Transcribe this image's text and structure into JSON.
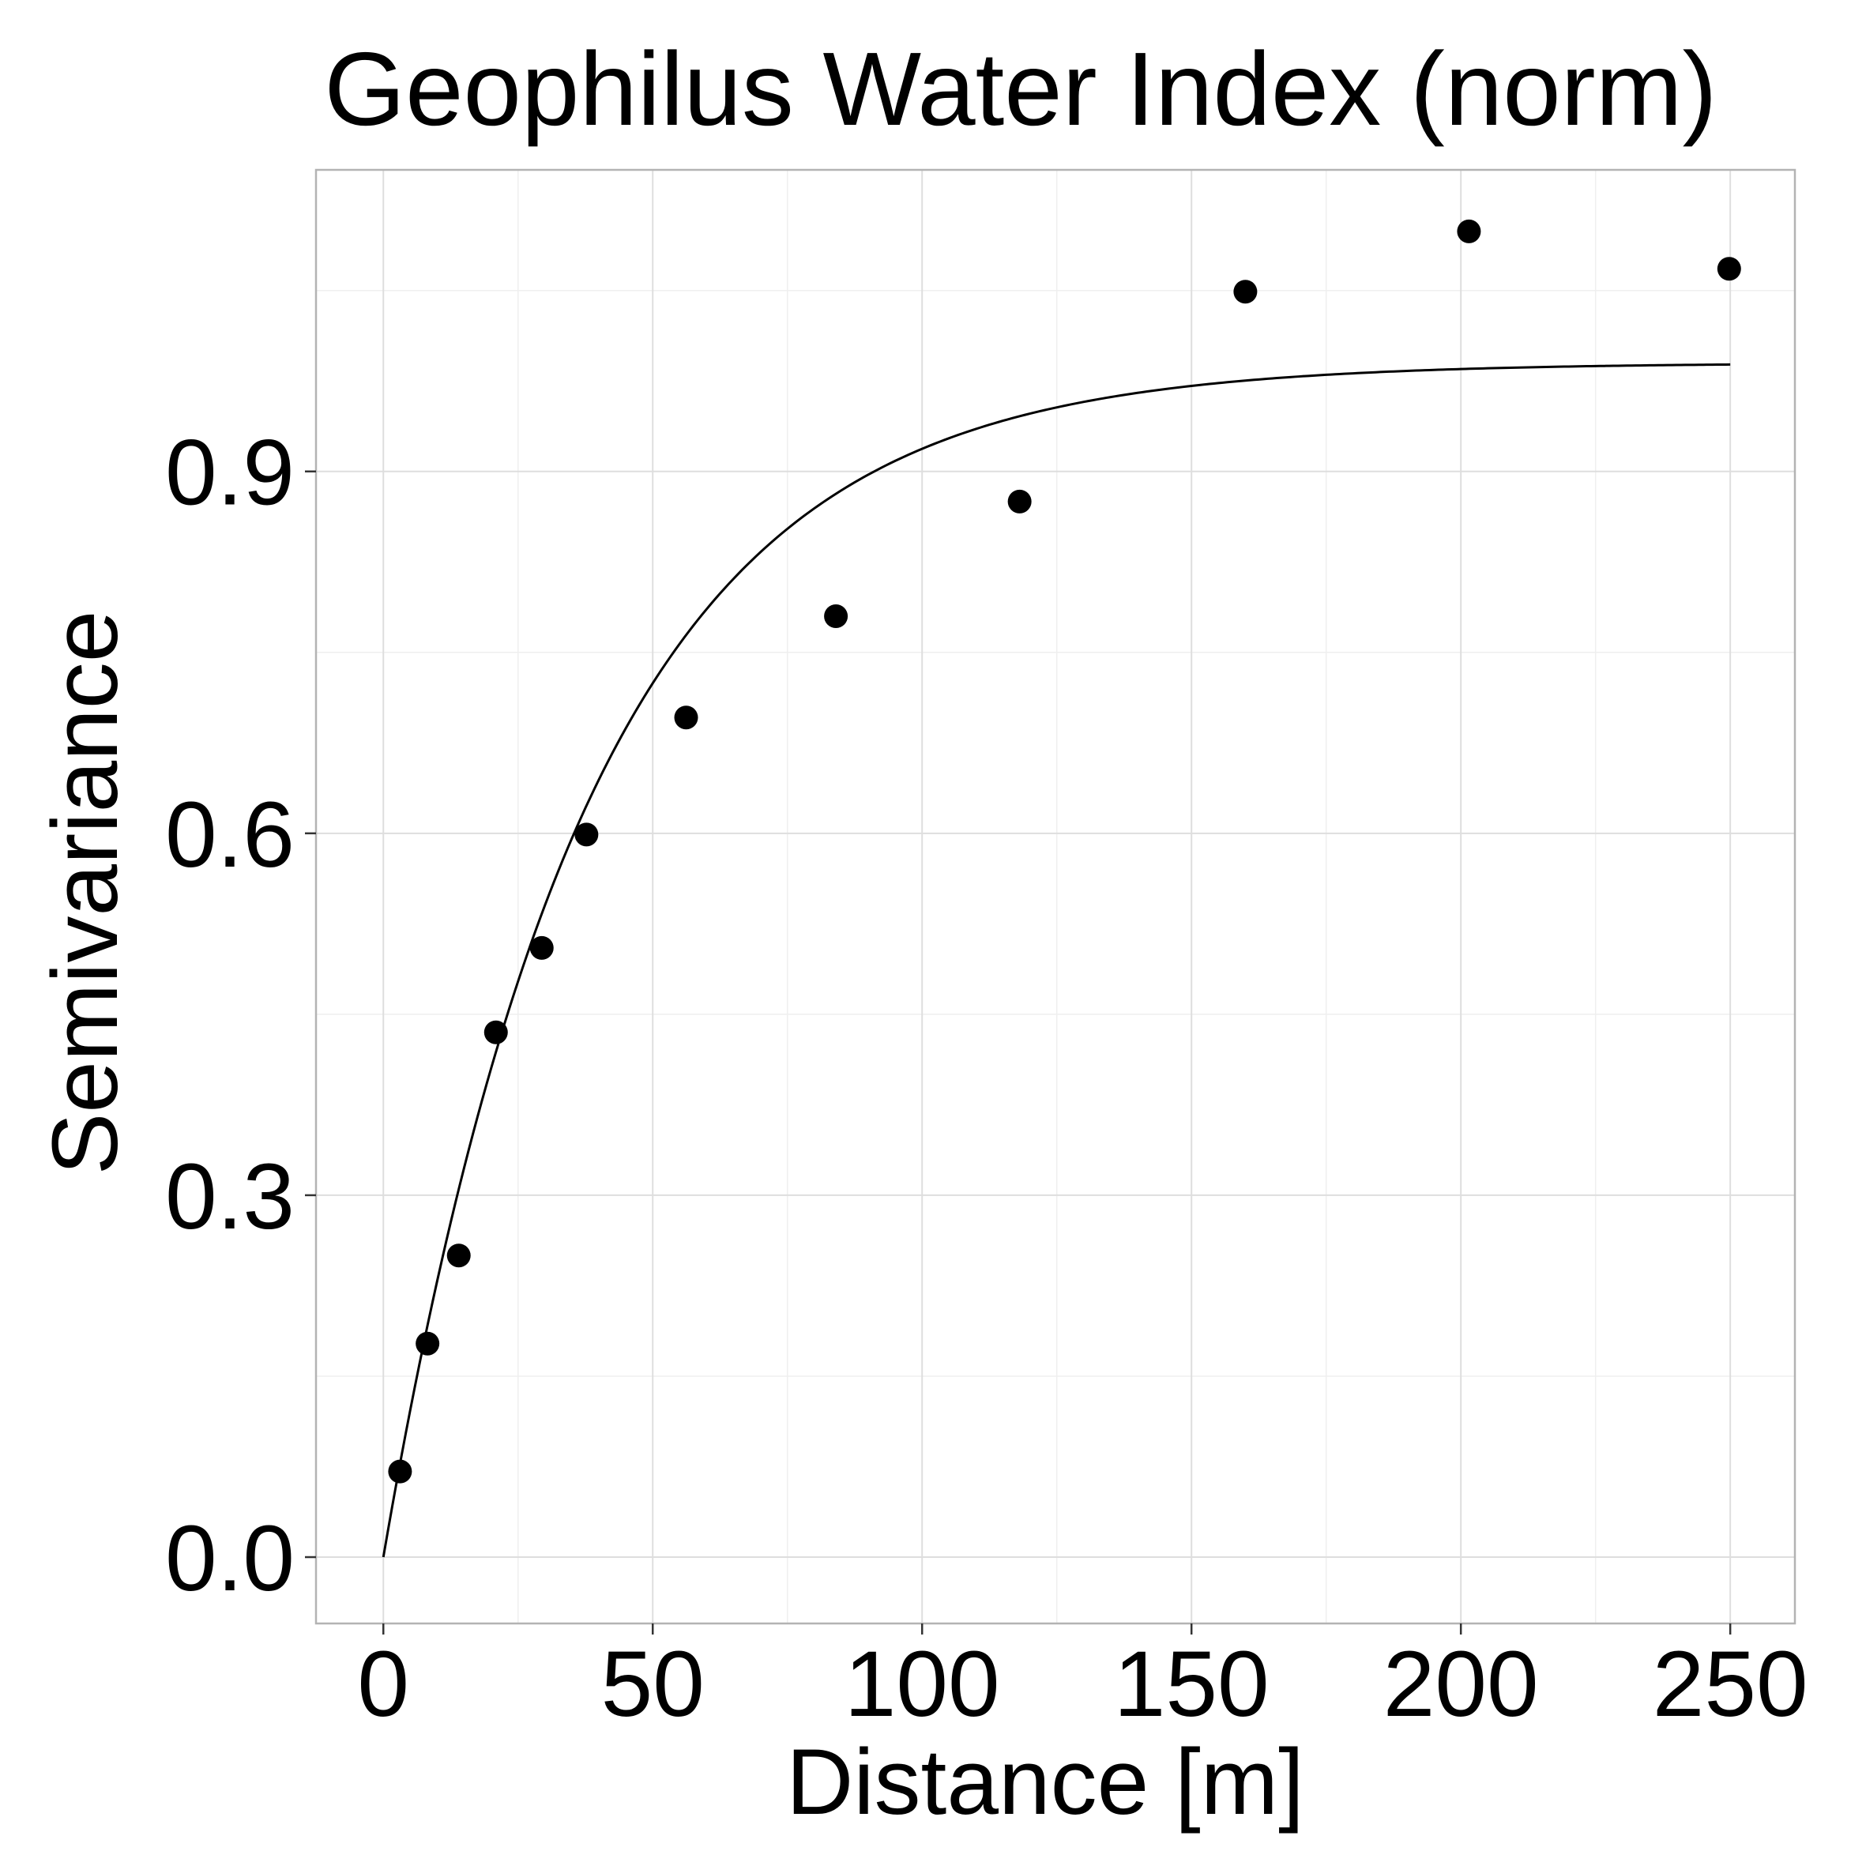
{
  "chart_data": {
    "type": "scatter",
    "title": "Geophilus Water Index (norm)",
    "xlabel": "Distance [m]",
    "ylabel": "Semivariance",
    "xlim": [
      -12.5,
      262
    ],
    "ylim": [
      -0.055,
      1.15
    ],
    "xticks": [
      0,
      50,
      100,
      150,
      200,
      250
    ],
    "xtick_labels": [
      "0",
      "50",
      "100",
      "150",
      "200",
      "250"
    ],
    "yticks": [
      0.0,
      0.3,
      0.6,
      0.9
    ],
    "ytick_labels": [
      "0.0",
      "0.3",
      "0.6",
      "0.9"
    ],
    "grid": true,
    "points": {
      "x": [
        3.1,
        8.2,
        14.0,
        20.9,
        29.4,
        37.7,
        56.2,
        84.0,
        118.1,
        160.0,
        201.5,
        249.8
      ],
      "y": [
        0.071,
        0.177,
        0.25,
        0.435,
        0.505,
        0.599,
        0.696,
        0.78,
        0.875,
        1.049,
        1.099,
        1.068
      ]
    },
    "fitted_curve": {
      "model": "exponential",
      "nugget": 0.0,
      "sill": 0.99,
      "range": 38,
      "x_min": 0,
      "x_max": 250
    },
    "colors": {
      "points": "#000000",
      "curve": "#000000",
      "grid": "#dedede",
      "border": "#b3b3b3"
    }
  }
}
